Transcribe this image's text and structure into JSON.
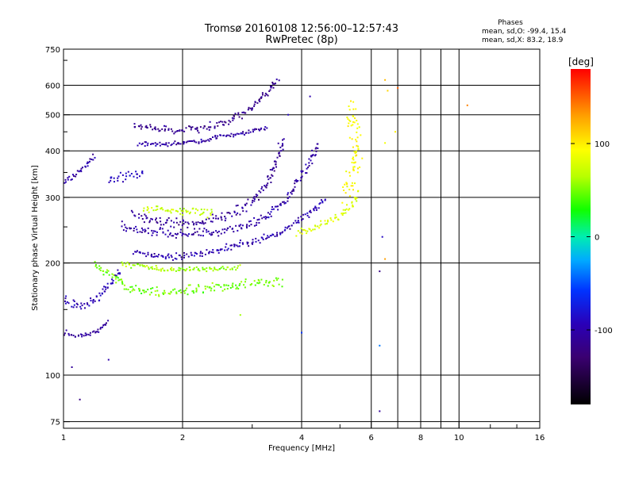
{
  "chart_data": {
    "type": "scatter",
    "title": "Tromsø 20160108 12:56:00–12:57:43",
    "subtitle": "RwPretec (8p)",
    "stats": {
      "heading": "Phases",
      "o_line": "mean, sd,O: -99.4, 15.4",
      "x_line": "mean, sd,X:  83.2, 18.9"
    },
    "xlabel": "Frequency [MHz]",
    "ylabel": "Stationary phase Virtual Height [km]",
    "x_scale": "log",
    "y_scale": "log",
    "xlim": [
      1,
      16
    ],
    "ylim": [
      72,
      750
    ],
    "xticks": [
      1,
      2,
      4,
      6,
      8,
      10,
      16
    ],
    "xtick_labels": [
      "1",
      "2",
      "4",
      "6",
      "8",
      "10",
      "16"
    ],
    "yticks": [
      75,
      100,
      200,
      300,
      400,
      500,
      600,
      750
    ],
    "ytick_labels": [
      "75",
      "100",
      "200",
      "300",
      "400",
      "500",
      "600",
      "750"
    ],
    "grid": true,
    "colorbar": {
      "label": "[deg]",
      "range": [
        -180,
        180
      ],
      "ticks": [
        100,
        0,
        -100
      ],
      "tick_labels": [
        "100",
        "0",
        "-100"
      ]
    },
    "series": [
      {
        "traces": [
          {
            "points": [
              [
                1.5,
                215
              ],
              [
                1.8,
                207
              ],
              [
                2.2,
                211
              ],
              [
                2.6,
                220
              ],
              [
                3.0,
                228
              ],
              [
                3.5,
                240
              ],
              [
                3.9,
                258
              ],
              [
                4.3,
                278
              ],
              [
                4.6,
                298
              ]
            ],
            "phase": -100,
            "spread": 6
          },
          {
            "points": [
              [
                1.4,
                250
              ],
              [
                1.7,
                242
              ],
              [
                2.0,
                240
              ],
              [
                2.4,
                243
              ],
              [
                2.8,
                250
              ],
              [
                3.2,
                265
              ],
              [
                3.6,
                290
              ],
              [
                3.9,
                330
              ],
              [
                4.2,
                370
              ],
              [
                4.4,
                420
              ]
            ],
            "phase": -105,
            "spread": 8
          },
          {
            "points": [
              [
                1.5,
                270
              ],
              [
                1.8,
                258
              ],
              [
                2.2,
                256
              ],
              [
                2.6,
                266
              ],
              [
                3.0,
                290
              ],
              [
                3.3,
                330
              ],
              [
                3.5,
                390
              ],
              [
                3.6,
                430
              ]
            ],
            "phase": -110,
            "spread": 9
          },
          {
            "points": [
              [
                1.5,
                470
              ],
              [
                1.9,
                455
              ],
              [
                2.3,
                460
              ],
              [
                2.6,
                480
              ],
              [
                3.0,
                520
              ],
              [
                3.3,
                580
              ],
              [
                3.5,
                620
              ]
            ],
            "phase": -115,
            "spread": 7
          },
          {
            "points": [
              [
                1.55,
                420
              ],
              [
                1.8,
                415
              ],
              [
                2.2,
                425
              ],
              [
                2.6,
                440
              ],
              [
                3.0,
                450
              ],
              [
                3.3,
                460
              ]
            ],
            "phase": -105,
            "spread": 4
          },
          {
            "points": [
              [
                1.0,
                160
              ],
              [
                1.1,
                152
              ],
              [
                1.2,
                158
              ],
              [
                1.3,
                175
              ],
              [
                1.4,
                190
              ]
            ],
            "phase": -95,
            "spread": 8
          },
          {
            "points": [
              [
                1.0,
                130
              ],
              [
                1.1,
                127
              ],
              [
                1.2,
                130
              ],
              [
                1.3,
                140
              ]
            ],
            "phase": -110,
            "spread": 5
          },
          {
            "points": [
              [
                1.0,
                330
              ],
              [
                1.05,
                340
              ],
              [
                1.12,
                360
              ],
              [
                1.2,
                385
              ]
            ],
            "phase": -105,
            "spread": 6
          },
          {
            "points": [
              [
                1.3,
                330
              ],
              [
                1.4,
                340
              ],
              [
                1.6,
                350
              ]
            ],
            "phase": -90,
            "spread": 8
          },
          {
            "points": [
              [
                1.2,
                200
              ],
              [
                1.3,
                185
              ],
              [
                1.4,
                175
              ],
              [
                1.6,
                168
              ],
              [
                1.8,
                166
              ],
              [
                2.0,
                168
              ],
              [
                2.4,
                172
              ],
              [
                2.8,
                175
              ],
              [
                3.2,
                178
              ],
              [
                3.6,
                176
              ]
            ],
            "phase": 50,
            "spread": 9
          },
          {
            "points": [
              [
                1.4,
                200
              ],
              [
                1.6,
                195
              ],
              [
                1.8,
                192
              ],
              [
                2.2,
                192
              ],
              [
                2.8,
                195
              ]
            ],
            "phase": 60,
            "spread": 5
          },
          {
            "points": [
              [
                1.6,
                280
              ],
              [
                2.0,
                275
              ],
              [
                2.4,
                272
              ]
            ],
            "phase": 70,
            "spread": 7
          },
          {
            "points": [
              [
                3.9,
                240
              ],
              [
                4.3,
                250
              ],
              [
                4.7,
                258
              ],
              [
                5.1,
                270
              ],
              [
                5.4,
                290
              ],
              [
                5.6,
                310
              ]
            ],
            "phase": 80,
            "spread": 8
          },
          {
            "points": [
              [
                5.2,
                300
              ],
              [
                5.4,
                350
              ],
              [
                5.5,
                400
              ],
              [
                5.5,
                450
              ],
              [
                5.4,
                500
              ],
              [
                5.3,
                540
              ]
            ],
            "phase": 95,
            "spread": 25
          }
        ],
        "scatter": [
          [
            6.5,
            620,
            120
          ],
          [
            6.6,
            580,
            110
          ],
          [
            6.5,
            420,
            90
          ],
          [
            6.4,
            235,
            -90
          ],
          [
            6.3,
            190,
            -120
          ],
          [
            6.5,
            205,
            130
          ],
          [
            6.3,
            120,
            -40
          ],
          [
            6.3,
            80,
            -110
          ],
          [
            6.9,
            450,
            100
          ],
          [
            7.0,
            590,
            150
          ],
          [
            10.5,
            530,
            140
          ],
          [
            1.05,
            105,
            -110
          ],
          [
            1.1,
            86,
            -120
          ],
          [
            1.3,
            110,
            -100
          ],
          [
            2.8,
            145,
            60
          ],
          [
            3.3,
            265,
            -80
          ],
          [
            4.0,
            130,
            -60
          ],
          [
            3.7,
            500,
            -90
          ],
          [
            4.2,
            560,
            -100
          ]
        ]
      }
    ]
  }
}
